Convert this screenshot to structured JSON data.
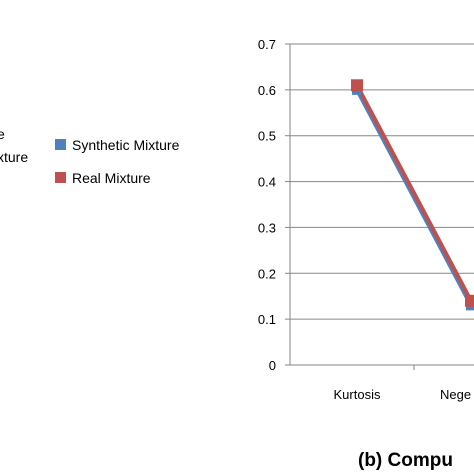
{
  "left_fragment": [
    "e",
    "xture"
  ],
  "panel_label": "(b)  Compu",
  "chart_data": {
    "type": "line",
    "title": "",
    "xlabel": "",
    "ylabel": "",
    "categories": [
      "Kurtosis",
      "Nege"
    ],
    "ylim": [
      0,
      0.7
    ],
    "yticks": [
      "0",
      "0.1",
      "0.2",
      "0.3",
      "0.4",
      "0.5",
      "0.6",
      "0.7"
    ],
    "grid": true,
    "legend_position": "left",
    "series": [
      {
        "name": "Synthetic Mixture",
        "color": "#4F81BD",
        "values": [
          0.6,
          0.13
        ]
      },
      {
        "name": "Real Mixture",
        "color": "#C0504D",
        "values": [
          0.61,
          0.14
        ]
      }
    ]
  }
}
